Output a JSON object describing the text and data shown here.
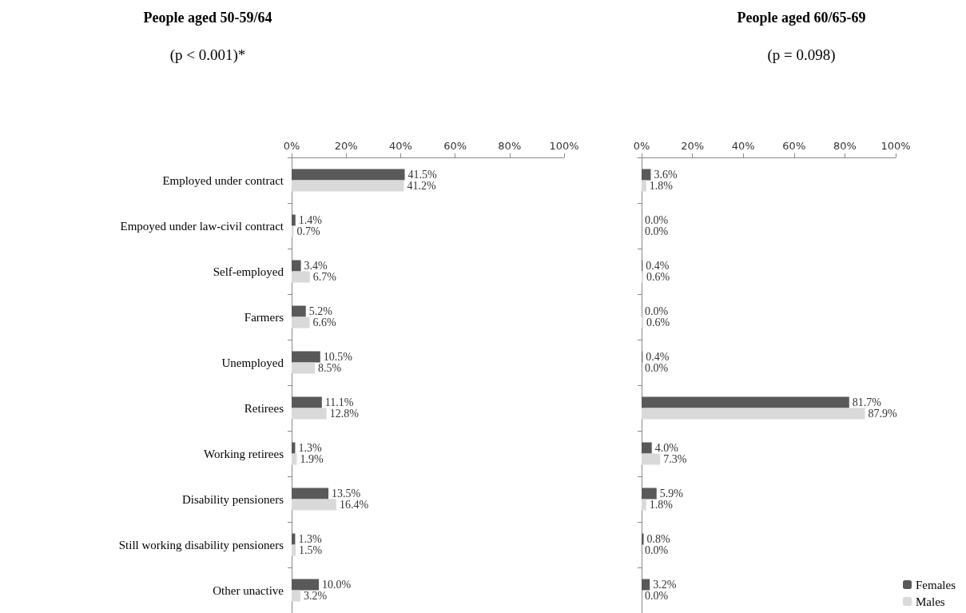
{
  "chart_data": [
    {
      "type": "bar",
      "orientation": "horizontal",
      "title": "People aged 50-59/64",
      "subtitle": "(p < 0.001)*",
      "categories": [
        "Employed under contract",
        "Empoyed under law-civil contract",
        "Self-employed",
        "Farmers",
        "Unemployed",
        "Retirees",
        "Working retirees",
        "Disability pensioners",
        "Still working disability pensioners",
        "Other unactive"
      ],
      "xlim": [
        0,
        100
      ],
      "xticks": [
        {
          "value": 0,
          "label": "0%"
        },
        {
          "value": 20,
          "label": "20%"
        },
        {
          "value": 40,
          "label": "40%"
        },
        {
          "value": 60,
          "label": "60%"
        },
        {
          "value": 80,
          "label": "80%"
        },
        {
          "value": 100,
          "label": "100%"
        }
      ],
      "legend": false,
      "series": [
        {
          "color": "#595959",
          "values": [
            41.5,
            1.4,
            3.4,
            5.2,
            10.5,
            11.1,
            1.3,
            13.5,
            1.3,
            10.0
          ],
          "value_labels": [
            "41.5%",
            "1.4%",
            "3.4%",
            "5.2%",
            "10.5%",
            "11.1%",
            "1.3%",
            "13.5%",
            "1.3%",
            "10.0%"
          ]
        },
        {
          "color": "#d9d9d9",
          "values": [
            41.2,
            0.7,
            6.7,
            6.6,
            8.5,
            12.8,
            1.9,
            16.4,
            1.5,
            3.2
          ],
          "value_labels": [
            "41.2%",
            "0.7%",
            "6.7%",
            "6.6%",
            "8.5%",
            "12.8%",
            "1.9%",
            "16.4%",
            "1.5%",
            "3.2%"
          ]
        }
      ]
    },
    {
      "type": "bar",
      "orientation": "horizontal",
      "title": "People aged 60/65-69",
      "subtitle": "(p = 0.098)",
      "categories": [
        null,
        null,
        null,
        null,
        null,
        null,
        null,
        null,
        null,
        null
      ],
      "xlim": [
        0,
        100
      ],
      "xticks": [
        {
          "value": 0,
          "label": "0%"
        },
        {
          "value": 20,
          "label": "20%"
        },
        {
          "value": 40,
          "label": "40%"
        },
        {
          "value": 60,
          "label": "60%"
        },
        {
          "value": 80,
          "label": "80%"
        },
        {
          "value": 100,
          "label": "100%"
        }
      ],
      "legend": "bottom right",
      "series": [
        {
          "name": "Females",
          "color": "#595959",
          "values": [
            3.6,
            0.0,
            0.4,
            0.0,
            0.4,
            81.7,
            4.0,
            5.9,
            0.8,
            3.2
          ],
          "value_labels": [
            "3.6%",
            "0.0%",
            "0.4%",
            "0.0%",
            "0.4%",
            "81.7%",
            "4.0%",
            "5.9%",
            "0.8%",
            "3.2%"
          ]
        },
        {
          "name": "Males",
          "color": "#d9d9d9",
          "values": [
            1.8,
            0.0,
            0.6,
            0.6,
            0.0,
            87.9,
            7.3,
            1.8,
            0.0,
            0.0
          ],
          "value_labels": [
            "1.8%",
            "0.0%",
            "0.6%",
            "0.6%",
            "0.0%",
            "87.9%",
            "7.3%",
            "1.8%",
            "0.0%",
            "0.0%"
          ]
        }
      ]
    }
  ]
}
